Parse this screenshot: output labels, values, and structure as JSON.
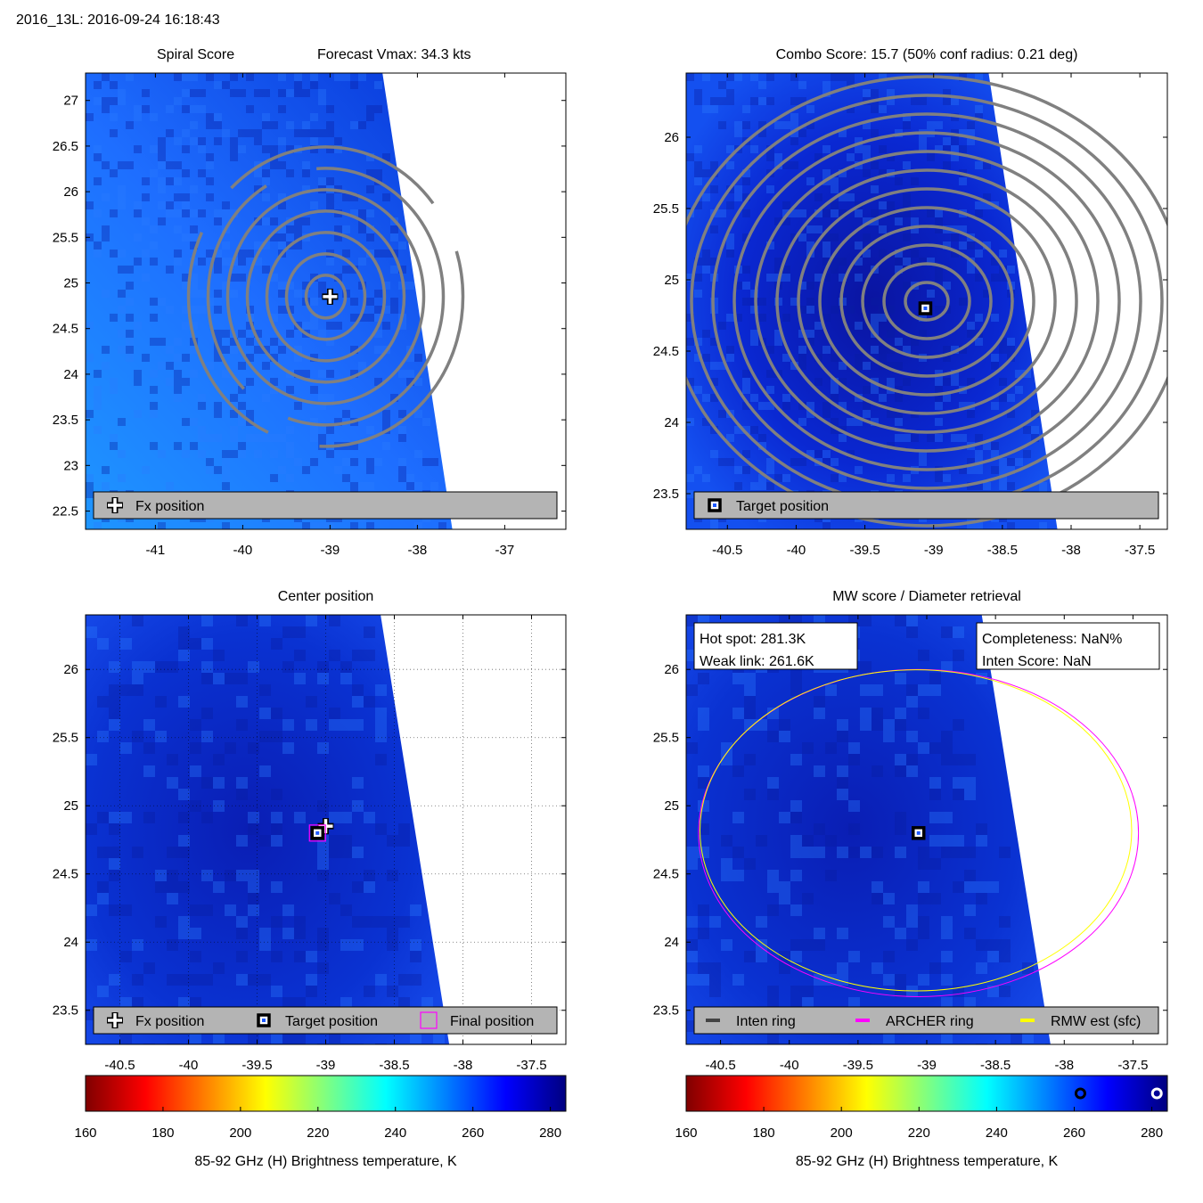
{
  "header": {
    "title": "2016_13L: 2016-09-24 16:18:43"
  },
  "colors": {
    "contour": "#808080",
    "frame": "#000000",
    "legend_bg": "#b4b4b4",
    "inten_ring": "#444444",
    "archer_ring": "#ff00ff",
    "rmw_ring": "#ffff00",
    "ocean_light": "#1e8cff",
    "ocean_dark": "#0a1eb4"
  },
  "colorbar": {
    "ticks": [
      "160",
      "180",
      "200",
      "220",
      "240",
      "260",
      "280"
    ],
    "min": 160,
    "max": 284,
    "label": "85-92 GHz (H) Brightness temperature, K",
    "stops": [
      "#800000",
      "#ff0000",
      "#ff8000",
      "#ffff00",
      "#80ff80",
      "#00ffff",
      "#0080ff",
      "#0000ff",
      "#000080"
    ],
    "markers": [
      {
        "value": 261.6,
        "name": "Weak link"
      },
      {
        "value": 281.3,
        "name": "Hot spot"
      }
    ]
  },
  "chart_data": [
    {
      "type": "heatmap",
      "title_left": "Spiral Score",
      "title_right": "Forecast Vmax: 34.3 kts",
      "xlim": [
        -41.8,
        -36.3
      ],
      "ylim": [
        22.3,
        27.3
      ],
      "xticks": [
        "-41",
        "-40",
        "-39",
        "-38",
        "-37"
      ],
      "yticks": [
        "22.5",
        "23",
        "23.5",
        "24",
        "24.5",
        "25",
        "25.5",
        "26",
        "26.5",
        "27"
      ],
      "swath_edge": [
        [
          -38.4,
          27.3
        ],
        [
          -37.6,
          22.3
        ]
      ],
      "markers": [
        {
          "name": "Fx position",
          "x": -39.0,
          "y": 24.85
        }
      ],
      "legend": [
        "Fx position"
      ]
    },
    {
      "type": "heatmap",
      "title": "Combo Score: 15.7  (50% conf radius: 0.21 deg)",
      "xlim": [
        -40.8,
        -37.3
      ],
      "ylim": [
        23.25,
        26.45
      ],
      "xticks": [
        "-40.5",
        "-40",
        "-39.5",
        "-39",
        "-38.5",
        "-38",
        "-37.5"
      ],
      "yticks": [
        "23.5",
        "24",
        "24.5",
        "25",
        "25.5",
        "26"
      ],
      "swath_edge": [
        [
          -38.6,
          26.45
        ],
        [
          -38.1,
          23.25
        ]
      ],
      "markers": [
        {
          "name": "Target position",
          "x": -39.06,
          "y": 24.8
        }
      ],
      "legend": [
        "Target position"
      ]
    },
    {
      "type": "heatmap",
      "title": "Center position",
      "xlim": [
        -40.75,
        -37.25
      ],
      "ylim": [
        23.25,
        26.4
      ],
      "xticks": [
        "-40.5",
        "-40",
        "-39.5",
        "-39",
        "-38.5",
        "-38",
        "-37.5"
      ],
      "yticks": [
        "23.5",
        "24",
        "24.5",
        "25",
        "25.5",
        "26"
      ],
      "swath_edge": [
        [
          -38.6,
          26.4
        ],
        [
          -38.1,
          23.25
        ]
      ],
      "markers": [
        {
          "name": "Fx position",
          "x": -39.0,
          "y": 24.85
        },
        {
          "name": "Target position",
          "x": -39.06,
          "y": 24.8
        },
        {
          "name": "Final position",
          "x": -39.06,
          "y": 24.8
        }
      ],
      "legend": [
        "Fx position",
        "Target position",
        "Final position"
      ]
    },
    {
      "type": "heatmap",
      "title": "MW score / Diameter retrieval",
      "xlim": [
        -40.75,
        -37.25
      ],
      "ylim": [
        23.25,
        26.4
      ],
      "xticks": [
        "-40.5",
        "-40",
        "-39.5",
        "-39",
        "-38.5",
        "-38",
        "-37.5"
      ],
      "yticks": [
        "23.5",
        "24",
        "24.5",
        "25",
        "25.5",
        "26"
      ],
      "swath_edge": [
        [
          -38.6,
          26.4
        ],
        [
          -38.1,
          23.25
        ]
      ],
      "center": {
        "x": -39.06,
        "y": 24.8
      },
      "rings": [
        {
          "name": "ARCHER ring",
          "radius_deg": 1.6
        },
        {
          "name": "RMW est (sfc)",
          "radius_deg": 1.57
        }
      ],
      "stats_left": [
        "Hot spot: 281.3K",
        "Weak link: 261.6K"
      ],
      "stats_right": [
        "Completeness: NaN%",
        "Inten Score: NaN"
      ],
      "legend": [
        "Inten ring",
        "ARCHER ring",
        "RMW est (sfc)"
      ]
    }
  ]
}
